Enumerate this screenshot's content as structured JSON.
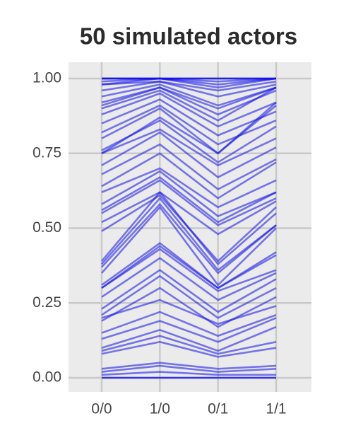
{
  "chart_data": {
    "type": "line",
    "title": "50 simulated actors",
    "categories": [
      "0/0",
      "1/0",
      "0/1",
      "1/1"
    ],
    "ylim": [
      0,
      1
    ],
    "yticks": [
      {
        "value": 0,
        "label": "0.00"
      },
      {
        "value": 0.25,
        "label": "0.25"
      },
      {
        "value": 0.5,
        "label": "0.50"
      },
      {
        "value": 0.75,
        "label": "0.75"
      },
      {
        "value": 1,
        "label": "1.00"
      }
    ],
    "grid": true,
    "color": "#1010e8",
    "series": [
      {
        "values": [
          1,
          1,
          1,
          1
        ]
      },
      {
        "values": [
          1,
          1,
          1,
          1
        ]
      },
      {
        "values": [
          1,
          1,
          0.99,
          1
        ]
      },
      {
        "values": [
          0.99,
          1,
          0.98,
          1
        ]
      },
      {
        "values": [
          0.98,
          0.99,
          0.96,
          0.99
        ]
      },
      {
        "values": [
          0.96,
          0.99,
          0.94,
          0.98
        ]
      },
      {
        "values": [
          0.94,
          0.98,
          0.91,
          0.97
        ]
      },
      {
        "values": [
          0.91,
          0.97,
          0.88,
          0.96
        ]
      },
      {
        "values": [
          0.9,
          0.96,
          0.86,
          0.97
        ]
      },
      {
        "values": [
          0.88,
          0.95,
          0.84,
          0.92
        ]
      },
      {
        "values": [
          0.85,
          0.93,
          0.81,
          0.89
        ]
      },
      {
        "values": [
          0.82,
          0.91,
          0.78,
          0.86
        ]
      },
      {
        "values": [
          0.8,
          0.9,
          0.75,
          0.91
        ]
      },
      {
        "values": [
          0.75,
          0.87,
          0.75,
          0.92
        ]
      },
      {
        "values": [
          0.75,
          0.83,
          0.71,
          0.8
        ]
      },
      {
        "values": [
          0.71,
          0.82,
          0.67,
          0.77
        ]
      },
      {
        "values": [
          0.68,
          0.78,
          0.63,
          0.73
        ]
      },
      {
        "values": [
          0.64,
          0.75,
          0.6,
          0.72
        ]
      },
      {
        "values": [
          0.62,
          0.7,
          0.57,
          0.66
        ]
      },
      {
        "values": [
          0.58,
          0.69,
          0.54,
          0.62
        ]
      },
      {
        "values": [
          0.55,
          0.66,
          0.51,
          0.6
        ]
      },
      {
        "values": [
          0.52,
          0.62,
          0.48,
          0.59
        ]
      },
      {
        "values": [
          0.49,
          0.61,
          0.39,
          0.57
        ]
      },
      {
        "values": [
          0.39,
          0.62,
          0.38,
          0.55
        ]
      },
      {
        "values": [
          0.38,
          0.6,
          0.36,
          0.51
        ]
      },
      {
        "values": [
          0.37,
          0.58,
          0.35,
          0.51
        ]
      },
      {
        "values": [
          0.35,
          0.57,
          0.31,
          0.5
        ]
      },
      {
        "values": [
          0.3,
          0.44,
          0.3,
          0.41
        ]
      },
      {
        "values": [
          0.3,
          0.43,
          0.29,
          0.36
        ]
      },
      {
        "values": [
          0.27,
          0.4,
          0.26,
          0.35
        ]
      },
      {
        "values": [
          0.23,
          0.36,
          0.22,
          0.33
        ]
      },
      {
        "values": [
          0.21,
          0.34,
          0.2,
          0.3
        ]
      },
      {
        "values": [
          0.2,
          0.26,
          0.18,
          0.24
        ]
      },
      {
        "values": [
          0.15,
          0.22,
          0.14,
          0.21
        ]
      },
      {
        "values": [
          0.13,
          0.19,
          0.12,
          0.2
        ]
      },
      {
        "values": [
          0.1,
          0.16,
          0.09,
          0.17
        ]
      },
      {
        "values": [
          0.09,
          0.14,
          0.08,
          0.12
        ]
      },
      {
        "values": [
          0.08,
          0.12,
          0.07,
          0.1
        ]
      },
      {
        "values": [
          0.03,
          0.05,
          0.03,
          0.04
        ]
      },
      {
        "values": [
          0.02,
          0.04,
          0.02,
          0.03
        ]
      },
      {
        "values": [
          0,
          0,
          0,
          0
        ]
      },
      {
        "values": [
          0,
          0,
          0,
          0
        ]
      },
      {
        "values": [
          1,
          1,
          1,
          1
        ]
      },
      {
        "values": [
          0.92,
          0.97,
          0.9,
          0.97
        ]
      },
      {
        "values": [
          0.76,
          0.86,
          0.72,
          0.84
        ]
      },
      {
        "values": [
          0.56,
          0.67,
          0.52,
          0.62
        ]
      },
      {
        "values": [
          0.31,
          0.45,
          0.3,
          0.42
        ]
      },
      {
        "values": [
          0.19,
          0.3,
          0.17,
          0.27
        ]
      },
      {
        "values": [
          0.01,
          0.02,
          0.01,
          0.01
        ]
      },
      {
        "values": [
          0.98,
          1,
          0.97,
          1
        ]
      }
    ]
  }
}
